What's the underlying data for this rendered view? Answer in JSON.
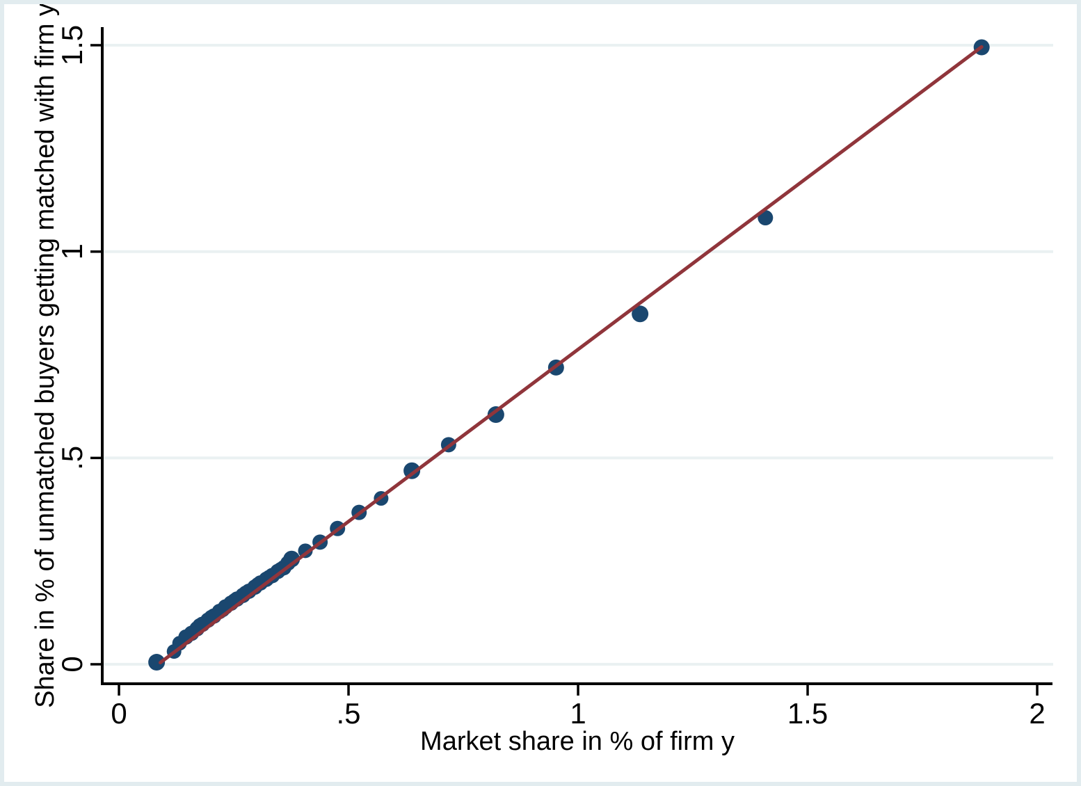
{
  "figure": {
    "background_color": "#ffffff",
    "frame_color": "#e2ecef",
    "axis_color": "#000000",
    "text_color": "#000000",
    "gridline_color": "#eaf1f2"
  },
  "chart_data": {
    "type": "scatter",
    "title": "",
    "xlabel": "Market share in % of firm y",
    "ylabel": "Share in % of unmatched buyers getting matched with firm y",
    "legend": "none",
    "grid": "horizontal",
    "xlim": [
      -0.0364,
      2.0333
    ],
    "ylim": [
      -0.0472,
      1.5439
    ],
    "x_ticks": {
      "values": [
        0,
        0.5,
        1,
        1.5,
        2
      ],
      "labels": [
        "0",
        ".5",
        "1",
        "1.5",
        "2"
      ]
    },
    "y_ticks": {
      "values": [
        0,
        0.5,
        1,
        1.5
      ],
      "labels": [
        "0",
        ".5",
        "1",
        "1.5"
      ]
    },
    "series": [
      {
        "name": "matched-share-scatter",
        "type": "scatter",
        "marker_color": "#1a476f",
        "points": [
          [
            0.082,
            0.005,
            12
          ],
          [
            0.12,
            0.031,
            10.5
          ],
          [
            0.132,
            0.051,
            10.5
          ],
          [
            0.146,
            0.066,
            11
          ],
          [
            0.158,
            0.075,
            11
          ],
          [
            0.17,
            0.086,
            11
          ],
          [
            0.176,
            0.094,
            10.5
          ],
          [
            0.182,
            0.097,
            11
          ],
          [
            0.194,
            0.107,
            11
          ],
          [
            0.201,
            0.114,
            10.5
          ],
          [
            0.207,
            0.117,
            11
          ],
          [
            0.219,
            0.128,
            11
          ],
          [
            0.226,
            0.132,
            10.5
          ],
          [
            0.232,
            0.139,
            11
          ],
          [
            0.244,
            0.148,
            11
          ],
          [
            0.251,
            0.154,
            10.5
          ],
          [
            0.257,
            0.158,
            11
          ],
          [
            0.27,
            0.167,
            11
          ],
          [
            0.276,
            0.173,
            10.5
          ],
          [
            0.283,
            0.177,
            11
          ],
          [
            0.296,
            0.187,
            11
          ],
          [
            0.302,
            0.193,
            10.5
          ],
          [
            0.308,
            0.197,
            11
          ],
          [
            0.321,
            0.206,
            11
          ],
          [
            0.327,
            0.211,
            10.5
          ],
          [
            0.334,
            0.215,
            11
          ],
          [
            0.346,
            0.225,
            11
          ],
          [
            0.352,
            0.23,
            10.5
          ],
          [
            0.359,
            0.234,
            11
          ],
          [
            0.368,
            0.245,
            11
          ],
          [
            0.376,
            0.255,
            12
          ],
          [
            0.406,
            0.275,
            10.5
          ],
          [
            0.438,
            0.296,
            11
          ],
          [
            0.476,
            0.329,
            11
          ],
          [
            0.523,
            0.368,
            11
          ],
          [
            0.571,
            0.402,
            10.5
          ],
          [
            0.638,
            0.469,
            12
          ],
          [
            0.718,
            0.532,
            11
          ],
          [
            0.821,
            0.605,
            12
          ],
          [
            0.952,
            0.719,
            11.5
          ],
          [
            1.135,
            0.849,
            12
          ],
          [
            1.408,
            1.082,
            11
          ],
          [
            1.879,
            1.495,
            11.5
          ]
        ]
      },
      {
        "name": "fit-line",
        "type": "line",
        "line_color": "#90353b",
        "line_width": 5,
        "points": [
          [
            0.09,
            0.004
          ],
          [
            1.879,
            1.496
          ]
        ]
      }
    ]
  }
}
